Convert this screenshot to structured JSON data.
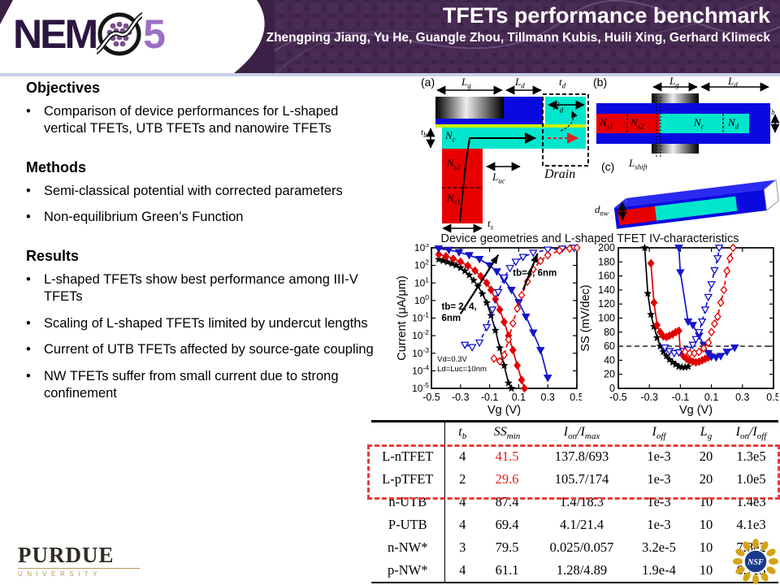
{
  "header": {
    "title": "TFETs performance benchmark",
    "authors": "Zhengping Jiang, Yu He, Guangle Zhou, Tillmann Kubis, Huili Xing, Gerhard Klimeck",
    "logo_nem": "NEM",
    "logo_five": "5",
    "bg_color": "#3a2145",
    "accent_color": "#9a6fc4"
  },
  "left_column": {
    "sections": [
      {
        "heading": "Objectives",
        "bullets": [
          "Comparison of device performances for L-shaped vertical TFETs, UTB TFETs and nanowire TFETs"
        ]
      },
      {
        "heading": "Methods",
        "bullets": [
          "Semi-classical potential with corrected parameters",
          "Non-equilibrium Green’s Function"
        ]
      },
      {
        "heading": "Results",
        "bullets": [
          "L-shaped TFETs show best performance among III-V TFETs",
          "Scaling of L-shaped TFETs limited by undercut lengths",
          "Current of UTB TFETs affected by source-gate coupling",
          "NW TFETs suffer from small current due to strong confinement"
        ]
      }
    ]
  },
  "figures": {
    "caption": "Device geometries and L-shaped TFET IV-characteristics",
    "a": {
      "tag": "(a)",
      "lg": "L_{g}",
      "ld": "L_{d}",
      "td": "t_{d}",
      "tb": "t_{b}",
      "nc": "N_{c}",
      "nd": "N_{d}",
      "luc": "L_{uc}",
      "ns2": "N_{s2}",
      "ns1": "N_{s1}",
      "ts": "t_{s}",
      "drain": "Drain"
    },
    "b": {
      "tag": "(b)",
      "lg": "L_{g}",
      "ld": "L_{d}",
      "ns1": "N_{s1}",
      "ns2": "N_{s2}",
      "nc": "N_{c}",
      "nd": "N_{d}",
      "tb": "t_{b}",
      "lshift": "L_{shift}"
    },
    "c": {
      "tag": "(c)",
      "dnw": "d_{nw}"
    },
    "colors": {
      "blue": "#0a0ae0",
      "cyan": "#00e6cc",
      "red": "#e80000",
      "oxide": "#ccee00"
    }
  },
  "chart_data": [
    {
      "type": "line",
      "yscale": "log",
      "xlabel": "Vg (V)",
      "ylabel": "Current (μA/μm)",
      "xlim": [
        -0.5,
        0.5
      ],
      "xticks": [
        -0.5,
        -0.3,
        -0.1,
        0.1,
        0.3,
        0.5
      ],
      "ylim_exp": [
        -5,
        3
      ],
      "series": [
        {
          "name": "L-TFET tb=2nm p-branch",
          "color": "#000000",
          "marker": "star",
          "dashed": false,
          "points": [
            [
              -0.45,
              220
            ],
            [
              -0.42,
              185
            ],
            [
              -0.39,
              155
            ],
            [
              -0.36,
              125
            ],
            [
              -0.33,
              100
            ],
            [
              -0.3,
              72
            ],
            [
              -0.27,
              48
            ],
            [
              -0.24,
              28
            ],
            [
              -0.21,
              14
            ],
            [
              -0.18,
              6.5
            ],
            [
              -0.15,
              2.4
            ],
            [
              -0.12,
              0.75
            ],
            [
              -0.09,
              0.14
            ],
            [
              -0.06,
              0.02
            ],
            [
              -0.03,
              0.002
            ],
            [
              0.0,
              0.0002
            ],
            [
              0.03,
              2e-05
            ],
            [
              0.05,
              1e-05
            ]
          ]
        },
        {
          "name": "L-TFET tb=4nm p-branch",
          "color": "#e00000",
          "marker": "diamond",
          "dashed": false,
          "points": [
            [
              -0.45,
              420
            ],
            [
              -0.4,
              330
            ],
            [
              -0.35,
              240
            ],
            [
              -0.3,
              160
            ],
            [
              -0.25,
              95
            ],
            [
              -0.2,
              50
            ],
            [
              -0.16,
              24
            ],
            [
              -0.12,
              10
            ],
            [
              -0.09,
              4
            ],
            [
              -0.06,
              1.2
            ],
            [
              -0.03,
              0.3
            ],
            [
              0.0,
              0.06
            ],
            [
              0.03,
              0.01
            ],
            [
              0.06,
              0.0015
            ],
            [
              0.09,
              0.0002
            ],
            [
              0.12,
              3e-05
            ],
            [
              0.14,
              1e-05
            ]
          ]
        },
        {
          "name": "L-TFET tb=6nm p-branch",
          "color": "#1515cc",
          "marker": "tri",
          "dashed": false,
          "points": [
            [
              -0.45,
              900
            ],
            [
              -0.38,
              760
            ],
            [
              -0.31,
              560
            ],
            [
              -0.24,
              380
            ],
            [
              -0.17,
              230
            ],
            [
              -0.1,
              100
            ],
            [
              -0.05,
              45
            ],
            [
              0.0,
              15
            ],
            [
              0.05,
              4
            ],
            [
              0.1,
              0.8
            ],
            [
              0.15,
              0.12
            ],
            [
              0.2,
              0.015
            ],
            [
              0.25,
              0.0015
            ],
            [
              0.3,
              4e-05
            ]
          ]
        },
        {
          "name": "L-TFET tb=6nm n-branch",
          "color": "#1515cc",
          "marker": "tri-open",
          "dashed": true,
          "points": [
            [
              -0.27,
              0.003
            ],
            [
              -0.22,
              0.0022
            ],
            [
              -0.17,
              0.004
            ],
            [
              -0.12,
              0.03
            ],
            [
              -0.08,
              0.3
            ],
            [
              -0.04,
              3
            ],
            [
              0.0,
              20
            ],
            [
              0.04,
              70
            ],
            [
              0.08,
              160
            ],
            [
              0.13,
              300
            ],
            [
              0.2,
              520
            ],
            [
              0.3,
              780
            ],
            [
              0.4,
              900
            ],
            [
              0.48,
              1000
            ]
          ]
        },
        {
          "name": "L-TFET tb=4nm n-branch",
          "color": "#e00000",
          "marker": "diamond-open",
          "dashed": true,
          "points": [
            [
              -0.07,
              0.0005
            ],
            [
              -0.03,
              0.00035
            ],
            [
              0.0,
              0.0008
            ],
            [
              0.03,
              0.006
            ],
            [
              0.06,
              0.05
            ],
            [
              0.09,
              0.35
            ],
            [
              0.12,
              2
            ],
            [
              0.16,
              12
            ],
            [
              0.2,
              60
            ],
            [
              0.25,
              180
            ],
            [
              0.3,
              380
            ],
            [
              0.38,
              700
            ],
            [
              0.45,
              900
            ],
            [
              0.5,
              1000
            ]
          ]
        }
      ],
      "annotations": [
        {
          "fx": 0.07,
          "fy": 0.44,
          "text": "tb= 2, 4,",
          "size": 11.5,
          "bold": true
        },
        {
          "fx": 0.07,
          "fy": 0.52,
          "text": "6nm",
          "size": 11.5,
          "bold": true
        },
        {
          "fx": 0.56,
          "fy": 0.2,
          "text": "tb=4, 6nm",
          "size": 11.5,
          "bold": true
        },
        {
          "fx": 0.04,
          "fy": 0.81,
          "text": "Vd=0.3V",
          "size": 9.5,
          "bold": false
        },
        {
          "fx": 0.04,
          "fy": 0.88,
          "text": "Ld=Luc=10nm",
          "size": 9.5,
          "bold": false
        }
      ],
      "arrows": [
        {
          "x1": 0.2,
          "y1": 0.47,
          "x2": 0.46,
          "y2": 0.05
        },
        {
          "x1": 0.63,
          "y1": 0.3,
          "x2": 0.73,
          "y2": 0.04
        }
      ]
    },
    {
      "type": "line",
      "yscale": "linear",
      "xlabel": "Vg (V)",
      "ylabel": "SS (mV/dec)",
      "xlim": [
        -0.5,
        0.5
      ],
      "xticks": [
        -0.5,
        -0.3,
        -0.1,
        0.1,
        0.3,
        0.5
      ],
      "ylim": [
        0,
        200
      ],
      "ytick_step": 20,
      "hline": 60,
      "series": [
        {
          "name": "tb=2nm",
          "color": "#000000",
          "marker": "star",
          "dashed": false,
          "points": [
            [
              -0.33,
              200
            ],
            [
              -0.31,
              135
            ],
            [
              -0.29,
              105
            ],
            [
              -0.27,
              88
            ],
            [
              -0.25,
              72
            ],
            [
              -0.23,
              60
            ],
            [
              -0.21,
              52
            ],
            [
              -0.19,
              46
            ],
            [
              -0.17,
              41
            ],
            [
              -0.15,
              37
            ],
            [
              -0.13,
              34
            ],
            [
              -0.11,
              31
            ],
            [
              -0.09,
              30
            ],
            [
              -0.07,
              30
            ],
            [
              -0.05,
              31
            ]
          ]
        },
        {
          "name": "tb=4nm",
          "color": "#e00000",
          "marker": "diamond",
          "dashed": false,
          "points": [
            [
              -0.29,
              178
            ],
            [
              -0.27,
              122
            ],
            [
              -0.25,
              90
            ],
            [
              -0.23,
              80
            ],
            [
              -0.21,
              74
            ],
            [
              -0.19,
              73
            ],
            [
              -0.17,
              75
            ],
            [
              -0.15,
              77
            ],
            [
              -0.13,
              80
            ],
            [
              -0.11,
              82
            ],
            [
              -0.1,
              52
            ],
            [
              -0.08,
              46
            ],
            [
              -0.06,
              42
            ],
            [
              -0.04,
              40
            ],
            [
              -0.02,
              38
            ],
            [
              0.0,
              37
            ],
            [
              0.02,
              38
            ],
            [
              0.04,
              40
            ],
            [
              0.06,
              42
            ],
            [
              0.08,
              44
            ],
            [
              0.1,
              46
            ]
          ]
        },
        {
          "name": "tb=6nm",
          "color": "#1515cc",
          "marker": "tri",
          "dashed": false,
          "points": [
            [
              -0.11,
              200
            ],
            [
              -0.1,
              165
            ],
            [
              -0.05,
              95
            ],
            [
              -0.02,
              90
            ],
            [
              0.02,
              75
            ],
            [
              0.05,
              62
            ],
            [
              0.08,
              50
            ],
            [
              0.1,
              45
            ],
            [
              0.13,
              44
            ],
            [
              0.16,
              46
            ],
            [
              0.2,
              52
            ],
            [
              0.25,
              58
            ]
          ]
        },
        {
          "name": "tb=6nm n",
          "color": "#1515cc",
          "marker": "tri-open",
          "dashed": true,
          "points": [
            [
              -0.2,
              58
            ],
            [
              -0.17,
              53
            ],
            [
              -0.14,
              50
            ],
            [
              -0.11,
              51
            ],
            [
              -0.08,
              53
            ],
            [
              -0.05,
              55
            ],
            [
              -0.02,
              62
            ],
            [
              0.0,
              70
            ],
            [
              0.02,
              80
            ],
            [
              0.04,
              95
            ],
            [
              0.06,
              112
            ],
            [
              0.08,
              130
            ],
            [
              0.1,
              148
            ],
            [
              0.12,
              168
            ],
            [
              0.14,
              185
            ],
            [
              0.15,
              200
            ]
          ]
        },
        {
          "name": "tb=4nm n",
          "color": "#e00000",
          "marker": "diamond-open",
          "dashed": true,
          "points": [
            [
              -0.07,
              52
            ],
            [
              -0.04,
              50
            ],
            [
              -0.01,
              50
            ],
            [
              0.02,
              52
            ],
            [
              0.05,
              57
            ],
            [
              0.08,
              65
            ],
            [
              0.1,
              80
            ],
            [
              0.12,
              92
            ],
            [
              0.14,
              102
            ],
            [
              0.16,
              122
            ],
            [
              0.18,
              140
            ],
            [
              0.2,
              167
            ],
            [
              0.22,
              185
            ],
            [
              0.24,
              200
            ]
          ]
        }
      ],
      "annotations": [],
      "arrows": []
    }
  ],
  "table": {
    "headers": [
      "",
      "t_{b}",
      "SS_{min}",
      "I_{on}/I_{max}",
      "I_{off}",
      "L_{g}",
      "I_{on}/I_{off}"
    ],
    "rows": [
      {
        "cells": [
          "L-nTFET",
          "4",
          "41.5",
          "137.8/693",
          "1e-3",
          "20",
          "1.3e5"
        ],
        "ss_red": true
      },
      {
        "cells": [
          "L-pTFET",
          "2",
          "29.6",
          "105.7/174",
          "1e-3",
          "20",
          "1.0e5"
        ],
        "ss_red": true
      },
      {
        "cells": [
          "n-UTB",
          "4",
          "87.4",
          "1.4/18.3",
          "1e-3",
          "10",
          "1.4e3"
        ],
        "ss_red": false
      },
      {
        "cells": [
          "P-UTB",
          "4",
          "69.4",
          "4.1/21.4",
          "1e-3",
          "10",
          "4.1e3"
        ],
        "ss_red": false
      },
      {
        "cells": [
          "n-NW*",
          "3",
          "79.5",
          "0.025/0.057",
          "3.2e-5",
          "10",
          "7.8e2"
        ],
        "ss_red": false
      },
      {
        "cells": [
          "p-NW*",
          "4",
          "61.1",
          "1.28/4.89",
          "1.9e-4",
          "10",
          "6.7e3"
        ],
        "ss_red": false
      }
    ],
    "highlight_color": "#e02020"
  },
  "footer": {
    "purdue": "PURDUE",
    "university": "UNIVERSITY",
    "nsf": "NSF"
  }
}
